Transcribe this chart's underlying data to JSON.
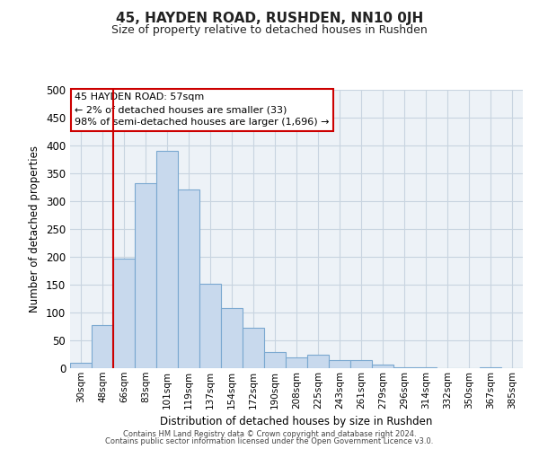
{
  "title": "45, HAYDEN ROAD, RUSHDEN, NN10 0JH",
  "subtitle": "Size of property relative to detached houses in Rushden",
  "xlabel": "Distribution of detached houses by size in Rushden",
  "ylabel": "Number of detached properties",
  "bar_labels": [
    "30sqm",
    "48sqm",
    "66sqm",
    "83sqm",
    "101sqm",
    "119sqm",
    "137sqm",
    "154sqm",
    "172sqm",
    "190sqm",
    "208sqm",
    "225sqm",
    "243sqm",
    "261sqm",
    "279sqm",
    "296sqm",
    "314sqm",
    "332sqm",
    "350sqm",
    "367sqm",
    "385sqm"
  ],
  "bar_heights": [
    10,
    78,
    197,
    333,
    390,
    321,
    151,
    108,
    73,
    29,
    20,
    24,
    15,
    15,
    7,
    2,
    1,
    0,
    0,
    1,
    0
  ],
  "bar_color": "#c8d9ed",
  "bar_edge_color": "#7aa8d0",
  "vline_x": 1.5,
  "vline_color": "#cc0000",
  "ylim": [
    0,
    500
  ],
  "yticks": [
    0,
    50,
    100,
    150,
    200,
    250,
    300,
    350,
    400,
    450,
    500
  ],
  "annotation_title": "45 HAYDEN ROAD: 57sqm",
  "annotation_line1": "← 2% of detached houses are smaller (33)",
  "annotation_line2": "98% of semi-detached houses are larger (1,696) →",
  "annotation_box_color": "#ffffff",
  "annotation_box_edge": "#cc0000",
  "footer1": "Contains HM Land Registry data © Crown copyright and database right 2024.",
  "footer2": "Contains public sector information licensed under the Open Government Licence v3.0.",
  "grid_color": "#c8d4e0",
  "bg_color": "#edf2f7"
}
